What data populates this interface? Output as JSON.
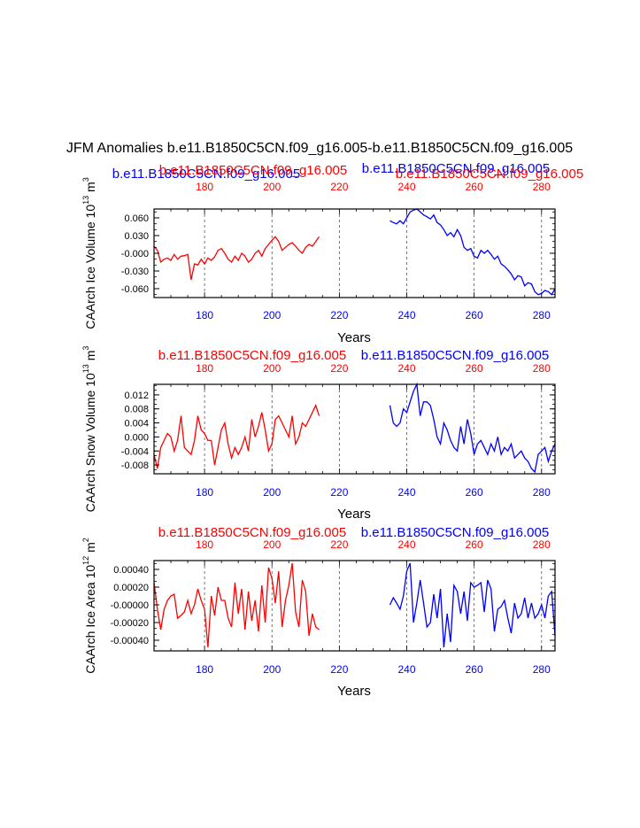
{
  "figure": {
    "title": "JFM Anomalies b.e11.B1850C5CN.f09_g16.005-b.e11.B1850C5CN.f09_g16.005",
    "colors": {
      "red": "#ff0000",
      "blue": "#0000ff",
      "axis": "#000000",
      "grid": "#555555"
    },
    "x_axis": {
      "label": "Years",
      "ticks": [
        "180",
        "200",
        "220",
        "240",
        "260",
        "280"
      ],
      "range": [
        165,
        284
      ],
      "dashed_gridlines": [
        180,
        200,
        220,
        240,
        260,
        280
      ]
    }
  },
  "chart_data": [
    {
      "type": "line",
      "ylabel": "CAArch Ice Volume 10",
      "ylabel_exp": "13",
      "ylabel_unit": "m",
      "ylabel_unit_exp": "3",
      "ylim": [
        -0.075,
        0.075
      ],
      "yticks": [
        "0.060",
        "0.030",
        "-0.000",
        "-0.030",
        "-0.060"
      ],
      "ytick_values": [
        0.06,
        0.03,
        0.0,
        -0.03,
        -0.06
      ],
      "xlabel": "Years",
      "top_labels": [
        {
          "text": "b.e11.B1850C5CN.f09_g16.005",
          "color": "blue"
        },
        {
          "text": "b.e11.B1850C5CN.f09_g16.005",
          "color": "red"
        },
        {
          "text": "b.e11.B1850C5CN.f09_g16.005",
          "color": "blue"
        },
        {
          "text": "b.e11.B1850C5CN.f09_g16.005",
          "color": "red"
        }
      ],
      "top_tick_labels": [
        "180",
        "200",
        "220",
        "240",
        "260",
        "280"
      ],
      "bottom_tick_labels": [
        "180",
        "200",
        "220",
        "240",
        "260",
        "280"
      ],
      "series": [
        {
          "color": "red",
          "x_start": 165,
          "values": [
            0.012,
            0.005,
            -0.015,
            -0.01,
            -0.008,
            -0.012,
            -0.002,
            -0.01,
            -0.005,
            -0.004,
            -0.002,
            -0.045,
            -0.018,
            -0.02,
            -0.01,
            -0.018,
            -0.008,
            -0.012,
            -0.006,
            0.005,
            0.008,
            0.0,
            -0.01,
            -0.015,
            -0.005,
            -0.012,
            0.0,
            -0.005,
            -0.015,
            -0.01,
            0.0,
            0.005,
            -0.005,
            0.008,
            0.015,
            0.022,
            0.028,
            0.02,
            0.005,
            0.01,
            0.015,
            0.018,
            0.012,
            0.005,
            0.0,
            0.01,
            0.015,
            0.012,
            0.02,
            0.028
          ]
        },
        {
          "color": "blue",
          "x_start": 235,
          "values": [
            0.055,
            0.052,
            0.05,
            0.055,
            0.05,
            0.06,
            0.07,
            0.073,
            0.075,
            0.07,
            0.065,
            0.062,
            0.058,
            0.065,
            0.052,
            0.048,
            0.04,
            0.03,
            0.035,
            0.028,
            0.04,
            0.03,
            0.01,
            0.005,
            0.008,
            -0.005,
            -0.008,
            0.005,
            0.0,
            0.005,
            -0.002,
            -0.01,
            -0.005,
            -0.018,
            -0.022,
            -0.028,
            -0.035,
            -0.045,
            -0.038,
            -0.04,
            -0.055,
            -0.05,
            -0.052,
            -0.065,
            -0.07,
            -0.068,
            -0.063,
            -0.065,
            -0.07,
            -0.06,
            -0.05
          ]
        }
      ]
    },
    {
      "type": "line",
      "ylabel": "CAArch Snow Volume 10",
      "ylabel_exp": "13",
      "ylabel_unit": "m",
      "ylabel_unit_exp": "3",
      "ylim": [
        -0.0105,
        0.015
      ],
      "yticks": [
        "0.012",
        "0.008",
        "0.004",
        "0.000",
        "-0.004",
        "-0.008"
      ],
      "ytick_values": [
        0.012,
        0.008,
        0.004,
        0.0,
        -0.004,
        -0.008
      ],
      "xlabel": "Years",
      "top_labels": [
        {
          "text": "b.e11.B1850C5CN.f09_g16.005",
          "color": "red"
        },
        {
          "text": "b.e11.B1850C5CN.f09_g16.005",
          "color": "blue"
        }
      ],
      "top_tick_labels": [
        "180",
        "200",
        "220",
        "240",
        "260",
        "280"
      ],
      "bottom_tick_labels": [
        "180",
        "200",
        "220",
        "240",
        "260",
        "280"
      ],
      "series": [
        {
          "color": "red",
          "x_start": 165,
          "values": [
            -0.005,
            -0.009,
            -0.003,
            -0.001,
            0.001,
            0.0,
            -0.004,
            -0.001,
            0.006,
            -0.003,
            -0.004,
            -0.005,
            -0.001,
            0.006,
            0.002,
            0.001,
            -0.001,
            -0.001,
            -0.008,
            -0.003,
            0.002,
            0.004,
            -0.002,
            -0.006,
            -0.003,
            -0.005,
            -0.003,
            0.0,
            -0.004,
            0.005,
            0.0,
            0.003,
            0.007,
            0.002,
            -0.004,
            -0.002,
            0.005,
            0.006,
            0.004,
            0.002,
            0.0,
            0.006,
            -0.002,
            0.0,
            0.004,
            0.003,
            0.005,
            0.007,
            0.009,
            0.006
          ]
        },
        {
          "color": "blue",
          "x_start": 235,
          "values": [
            0.009,
            0.004,
            0.003,
            0.004,
            0.008,
            0.007,
            0.01,
            0.013,
            0.015,
            0.006,
            0.01,
            0.01,
            0.009,
            0.005,
            0.0,
            -0.002,
            0.004,
            0.002,
            -0.001,
            -0.003,
            -0.004,
            0.003,
            -0.002,
            0.005,
            0.001,
            -0.005,
            -0.002,
            -0.001,
            -0.003,
            -0.005,
            -0.002,
            -0.004,
            0.0,
            -0.005,
            -0.003,
            -0.004,
            -0.002,
            -0.006,
            -0.005,
            -0.004,
            -0.006,
            -0.007,
            -0.009,
            -0.01,
            -0.005,
            -0.004,
            -0.003,
            -0.007,
            -0.004,
            -0.002,
            0.001
          ]
        }
      ]
    },
    {
      "type": "line",
      "ylabel": "CAArch Ice Area 10",
      "ylabel_exp": "12",
      "ylabel_unit": "m",
      "ylabel_unit_exp": "2",
      "ylim": [
        -0.00052,
        0.0005
      ],
      "yticks": [
        "0.00040",
        "0.00020",
        "-0.00000",
        "-0.00020",
        "-0.00040"
      ],
      "ytick_values": [
        0.0004,
        0.0002,
        0.0,
        -0.0002,
        -0.0004
      ],
      "xlabel": "Years",
      "top_labels": [
        {
          "text": "b.e11.B1850C5CN.f09_g16.005",
          "color": "red"
        },
        {
          "text": "b.e11.B1850C5CN.f09_g16.005",
          "color": "blue"
        }
      ],
      "top_tick_labels": [
        "180",
        "200",
        "220",
        "240",
        "260",
        "280"
      ],
      "bottom_tick_labels": [
        "180",
        "200",
        "220",
        "240",
        "260",
        "280"
      ],
      "series": [
        {
          "color": "red",
          "x_start": 165,
          "values": [
            0.00025,
            -5e-05,
            -0.00028,
            -5e-05,
            5e-05,
            0.0001,
            0.00012,
            -0.00015,
            -0.00012,
            -8e-05,
            5e-05,
            -0.0001,
            0.0,
            0.00018,
            5e-05,
            -5e-05,
            -0.00048,
            0.0001,
            -0.00012,
            0.0002,
            5e-05,
            5e-05,
            -0.00015,
            -0.00025,
            0.00025,
            -0.0001,
            0.00018,
            -0.00028,
            0.00015,
            -0.00018,
            5e-05,
            -0.0003,
            0.00022,
            -0.0002,
            0.00042,
            0.0003,
            2e-05,
            0.00038,
            -0.00025,
            5e-05,
            0.00022,
            0.00047,
            -8e-05,
            -0.00025,
            0.00028,
            0.00015,
            -0.00035,
            -0.0001,
            -0.00025,
            -0.00028
          ]
        },
        {
          "color": "blue",
          "x_start": 235,
          "values": [
            0.0,
            8e-05,
            2e-05,
            -5e-05,
            0.0001,
            0.00038,
            0.00047,
            -0.0002,
            2e-05,
            0.00028,
            2e-05,
            -0.00025,
            -0.0002,
            0.00012,
            -0.00015,
            0.00018,
            -0.00048,
            -0.0001,
            -0.00042,
            0.00022,
            0.00015,
            -0.0001,
            0.00015,
            -0.00018,
            0.00025,
            0.0002,
            0.00022,
            0.00025,
            -8e-05,
            0.00028,
            0.00018,
            -0.0003,
            -5e-05,
            -2e-05,
            5e-05,
            -0.00015,
            -0.00032,
            2e-05,
            -0.00015,
            -0.0001,
            8e-05,
            -0.00015,
            2e-05,
            -0.00015,
            -0.0001,
            0.0,
            -0.00015,
            0.0001,
            0.00015,
            -0.00035,
            5e-05
          ]
        }
      ]
    }
  ]
}
